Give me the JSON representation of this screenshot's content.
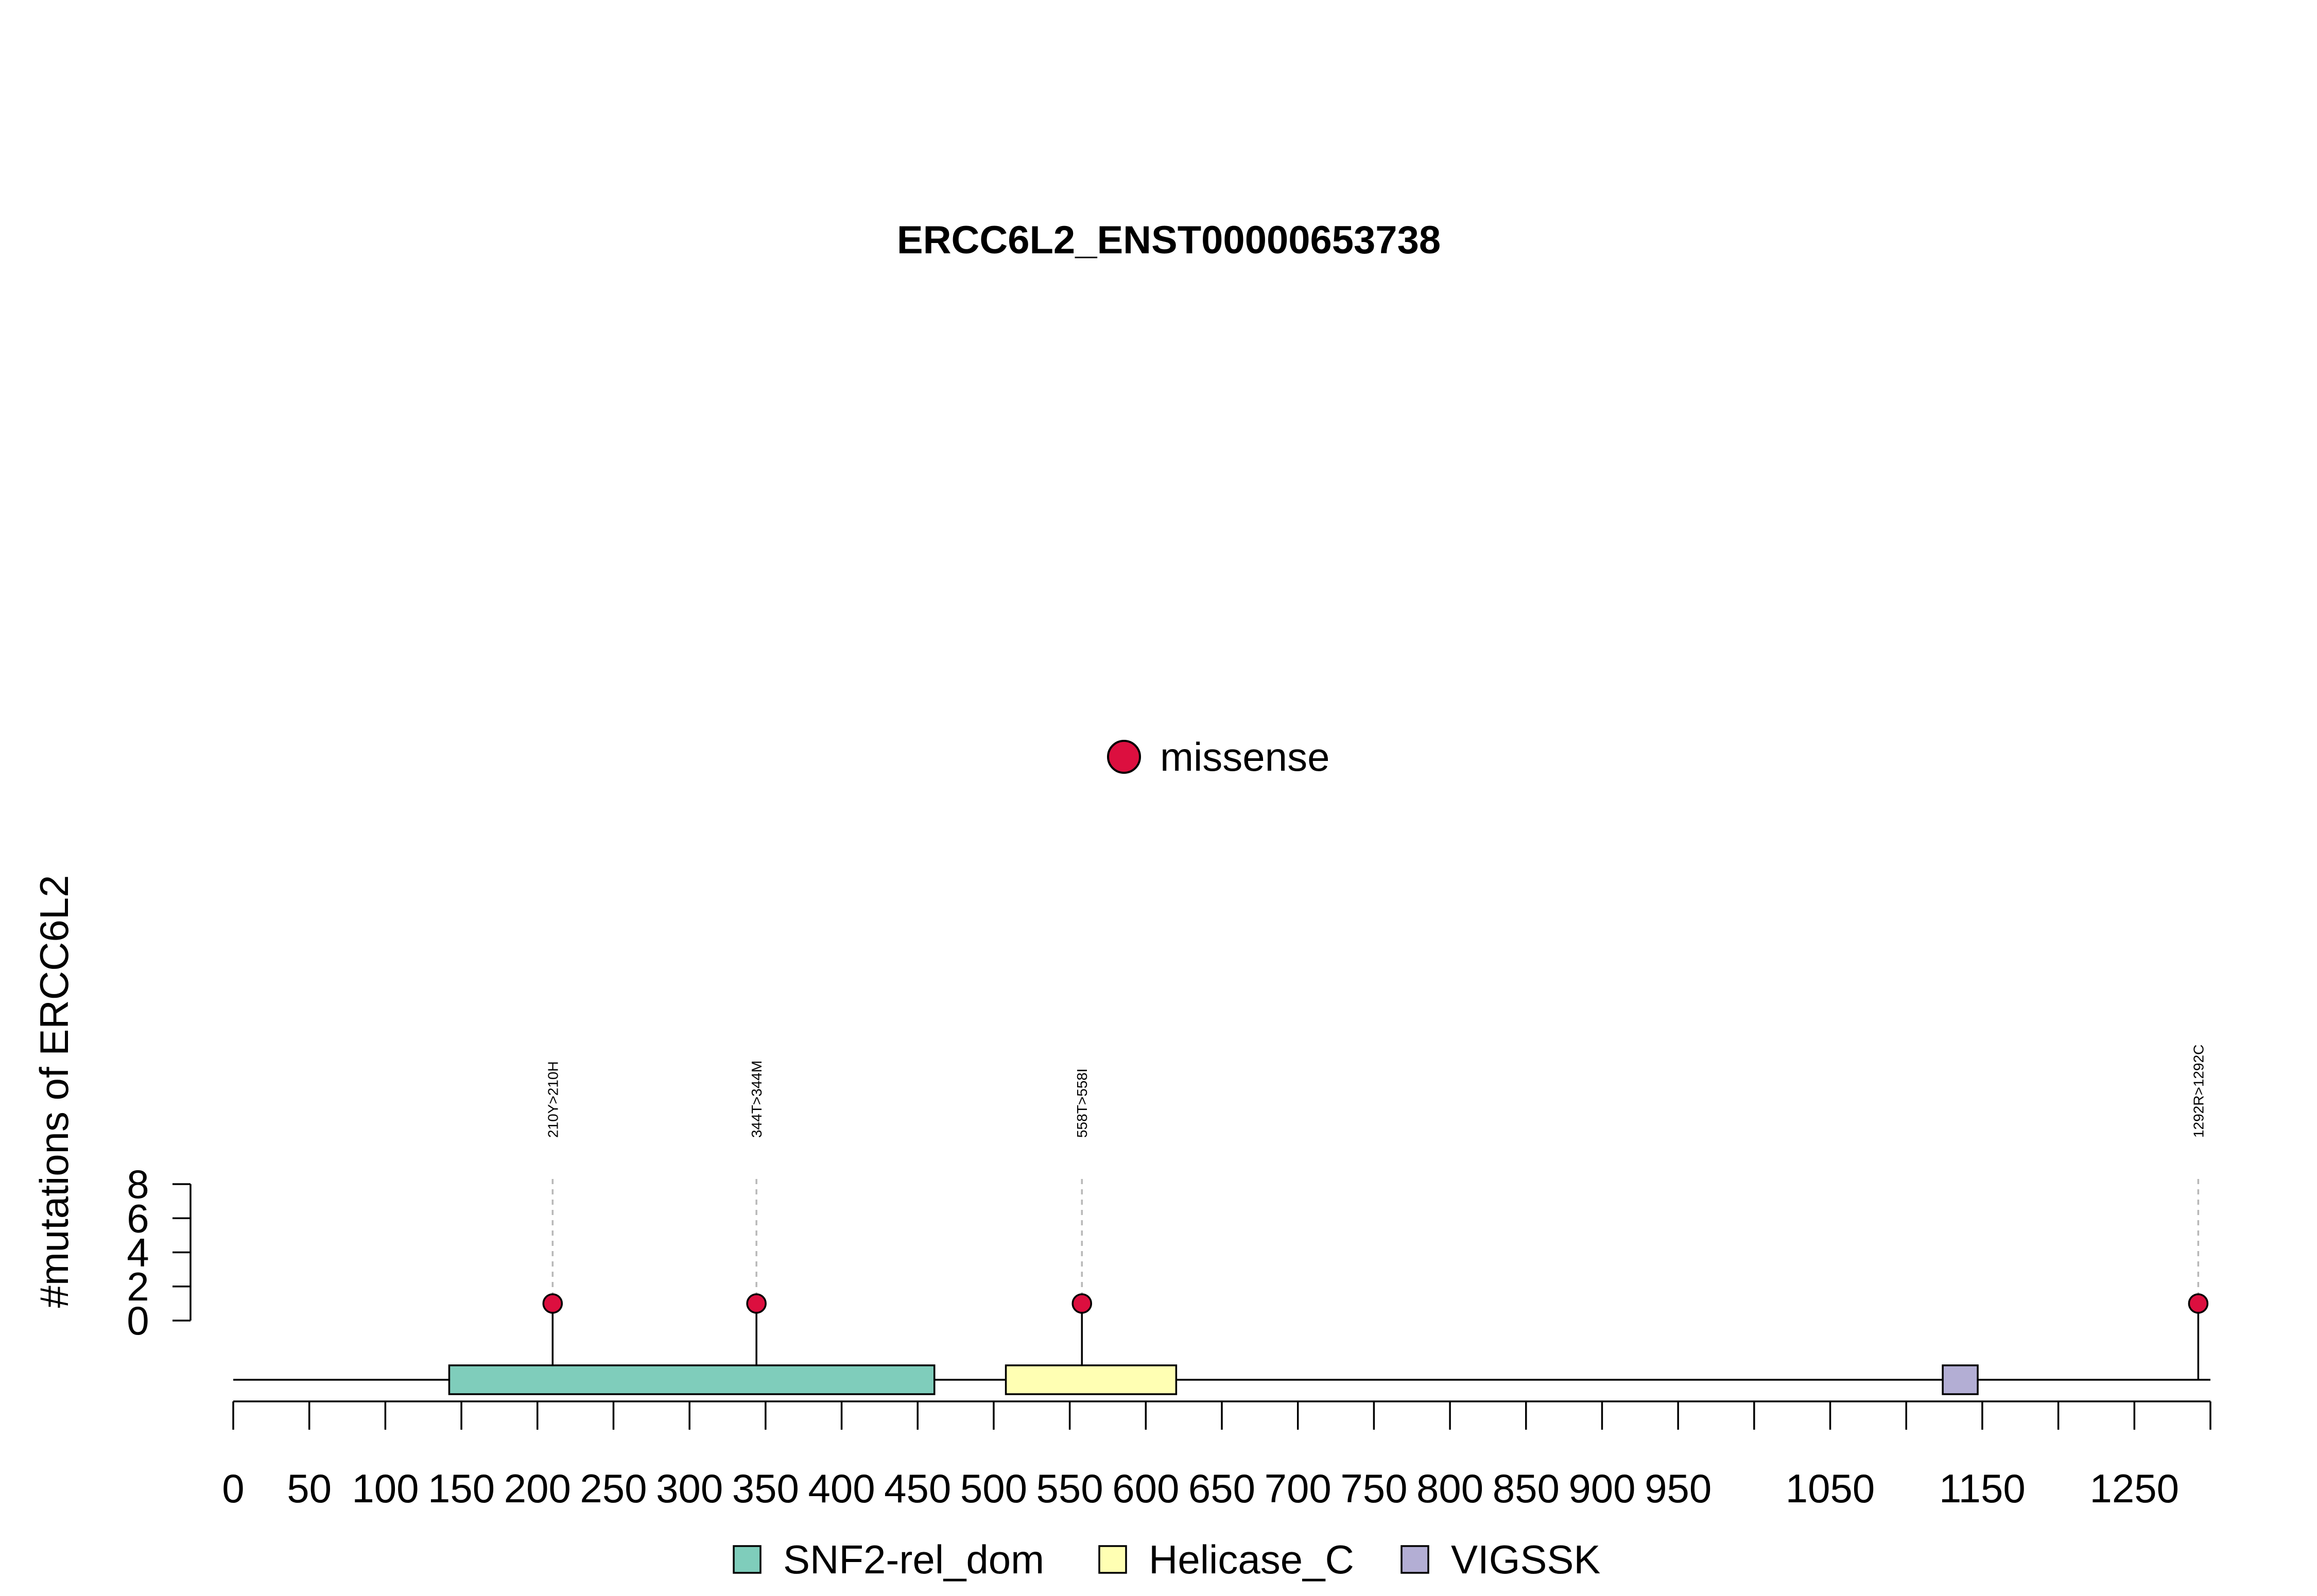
{
  "chart_data": {
    "type": "lollipop",
    "title": "ERCC6L2_ENST00000653738",
    "ylabel": "#mutations of ERCC6L2",
    "protein_length": 1300,
    "x_ticks": [
      0,
      50,
      100,
      150,
      200,
      250,
      300,
      350,
      400,
      450,
      500,
      550,
      600,
      650,
      700,
      750,
      800,
      850,
      900,
      950,
      1000,
      1050,
      1100,
      1150,
      1200,
      1250,
      1300
    ],
    "x_tick_labels": [
      "0",
      "50",
      "100",
      "150",
      "200",
      "250",
      "300",
      "350",
      "400",
      "450",
      "500",
      "550",
      "600",
      "650",
      "700",
      "750",
      "800",
      "850",
      "900",
      "950",
      "",
      "1050",
      "",
      "1150",
      "",
      "1250",
      ""
    ],
    "y_ticks": [
      0,
      2,
      4,
      6,
      8
    ],
    "y_tick_labels": [
      "0",
      "2",
      "4",
      "6",
      "8"
    ],
    "ylim": [
      0,
      8
    ],
    "domains": [
      {
        "name": "SNF2-rel_dom",
        "start": 142,
        "end": 461,
        "color": "#7fcdbb"
      },
      {
        "name": "Helicase_C",
        "start": 508,
        "end": 620,
        "color": "#ffffb3"
      },
      {
        "name": "VIGSSK",
        "start": 1124,
        "end": 1147,
        "color": "#b3aed4"
      }
    ],
    "mutations": [
      {
        "position": 210,
        "count": 1,
        "type": "missense",
        "label": "210Y>210H"
      },
      {
        "position": 344,
        "count": 1,
        "type": "missense",
        "label": "344T>344M"
      },
      {
        "position": 558,
        "count": 1,
        "type": "missense",
        "label": "558T>558I"
      },
      {
        "position": 1292,
        "count": 1,
        "type": "missense",
        "label": "1292R>1292C"
      }
    ],
    "mutation_legend": [
      {
        "label": "missense",
        "color": "#dc0f3f"
      }
    ],
    "domain_legend": [
      {
        "label": "SNF2-rel_dom",
        "color": "#7fcdbb"
      },
      {
        "label": "Helicase_C",
        "color": "#ffffb3"
      },
      {
        "label": "VIGSSK",
        "color": "#b3aed4"
      }
    ]
  }
}
